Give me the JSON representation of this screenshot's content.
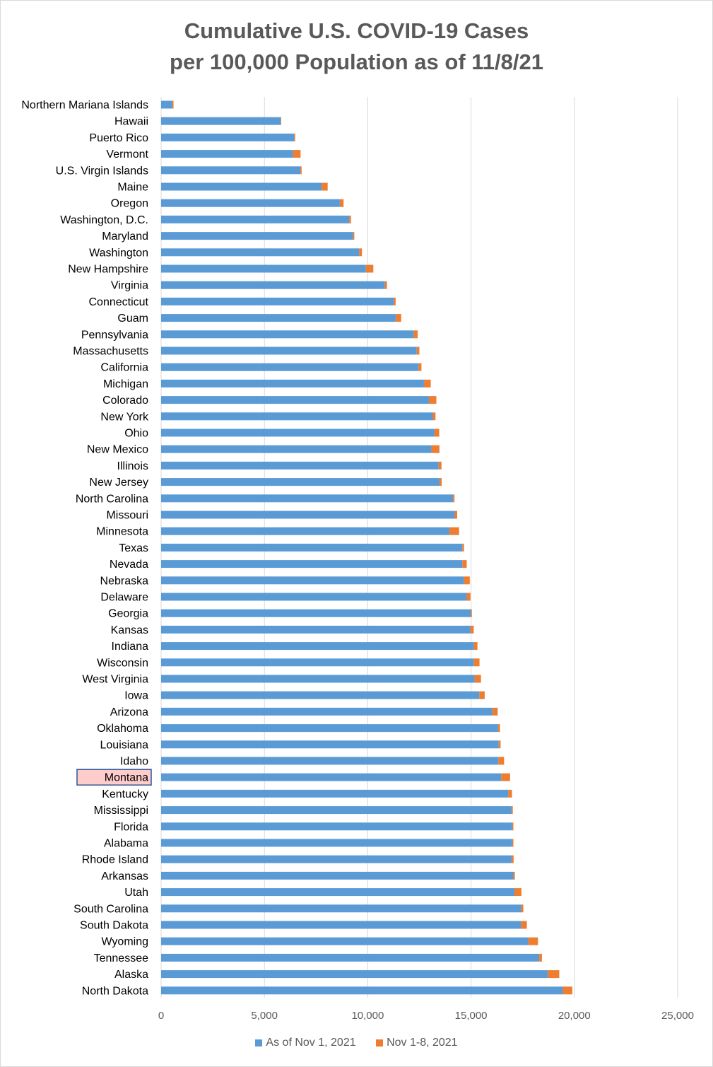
{
  "chart_data": {
    "type": "bar",
    "orientation": "horizontal",
    "stacked": true,
    "title": [
      "Cumulative U.S. COVID-19 Cases",
      "per 100,000 Population as of 11/8/21"
    ],
    "xlabel": "",
    "ylabel": "",
    "xlim": [
      0,
      25000
    ],
    "xticks": [
      0,
      5000,
      10000,
      15000,
      20000,
      25000
    ],
    "xtick_labels": [
      "0",
      "5,000",
      "10,000",
      "15,000",
      "20,000",
      "25,000"
    ],
    "grid": true,
    "legend_position": "bottom",
    "highlight": "Montana",
    "categories": [
      "Northern Mariana Islands",
      "Hawaii",
      "Puerto Rico",
      "Vermont",
      "U.S. Virgin Islands",
      "Maine",
      "Oregon",
      "Washington, D.C.",
      "Maryland",
      "Washington",
      "New Hampshire",
      "Virginia",
      "Connecticut",
      "Guam",
      "Pennsylvania",
      "Massachusetts",
      "California",
      "Michigan",
      "Colorado",
      "New York",
      "Ohio",
      "New Mexico",
      "Illinois",
      "New Jersey",
      "North Carolina",
      "Missouri",
      "Minnesota",
      "Texas",
      "Nevada",
      "Nebraska",
      "Delaware",
      "Georgia",
      "Kansas",
      "Indiana",
      "Wisconsin",
      "West Virginia",
      "Iowa",
      "Arizona",
      "Oklahoma",
      "Louisiana",
      "Idaho",
      "Montana",
      "Kentucky",
      "Mississippi",
      "Florida",
      "Alabama",
      "Rhode Island",
      "Arkansas",
      "Utah",
      "South Carolina",
      "South Dakota",
      "Wyoming",
      "Tennessee",
      "Alaska",
      "North Dakota"
    ],
    "series": [
      {
        "name": "As of Nov 1, 2021",
        "color": "#5b9bd5",
        "values": [
          540,
          5780,
          6440,
          6390,
          6740,
          7770,
          8650,
          9100,
          9290,
          9580,
          9910,
          10830,
          11260,
          11360,
          12220,
          12370,
          12460,
          12720,
          12960,
          13150,
          13220,
          13080,
          13430,
          13480,
          14130,
          14210,
          13950,
          14580,
          14580,
          14650,
          14790,
          15000,
          14970,
          15140,
          15140,
          15170,
          15400,
          16030,
          16310,
          16340,
          16320,
          16460,
          16800,
          16960,
          16990,
          16990,
          16960,
          17050,
          17100,
          17430,
          17420,
          17770,
          18300,
          18710,
          19440
        ]
      },
      {
        "name": "Nov 1-8, 2021",
        "color": "#ed7d31",
        "values": [
          60,
          30,
          50,
          360,
          60,
          290,
          180,
          90,
          60,
          140,
          360,
          100,
          90,
          260,
          200,
          130,
          140,
          330,
          360,
          130,
          240,
          390,
          140,
          100,
          70,
          120,
          470,
          80,
          210,
          290,
          180,
          40,
          160,
          170,
          270,
          310,
          260,
          260,
          90,
          90,
          280,
          430,
          180,
          60,
          60,
          60,
          100,
          70,
          340,
          100,
          280,
          470,
          130,
          560,
          460
        ]
      }
    ]
  }
}
